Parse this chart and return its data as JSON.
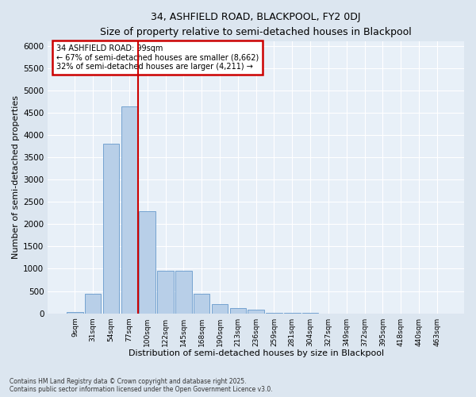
{
  "title_line1": "34, ASHFIELD ROAD, BLACKPOOL, FY2 0DJ",
  "title_line2": "Size of property relative to semi-detached houses in Blackpool",
  "xlabel": "Distribution of semi-detached houses by size in Blackpool",
  "ylabel": "Number of semi-detached properties",
  "categories": [
    "9sqm",
    "31sqm",
    "54sqm",
    "77sqm",
    "100sqm",
    "122sqm",
    "145sqm",
    "168sqm",
    "190sqm",
    "213sqm",
    "236sqm",
    "259sqm",
    "281sqm",
    "304sqm",
    "327sqm",
    "349sqm",
    "372sqm",
    "395sqm",
    "418sqm",
    "440sqm",
    "463sqm"
  ],
  "values": [
    30,
    430,
    3800,
    4650,
    2300,
    950,
    950,
    430,
    200,
    120,
    90,
    5,
    3,
    2,
    1,
    0,
    0,
    0,
    0,
    0,
    0
  ],
  "bar_color": "#b8cfe8",
  "bar_edge_color": "#6699cc",
  "vline_color": "#cc0000",
  "vline_position": 3.5,
  "annotation_title": "34 ASHFIELD ROAD: 99sqm",
  "annotation_line1": "← 67% of semi-detached houses are smaller (8,662)",
  "annotation_line2": "32% of semi-detached houses are larger (4,211) →",
  "annotation_box_edgecolor": "#cc0000",
  "ylim_max": 6100,
  "ytick_step": 500,
  "footnote1": "Contains HM Land Registry data © Crown copyright and database right 2025.",
  "footnote2": "Contains public sector information licensed under the Open Government Licence v3.0.",
  "bg_color": "#dce6f0",
  "plot_bg_color": "#e8f0f8"
}
